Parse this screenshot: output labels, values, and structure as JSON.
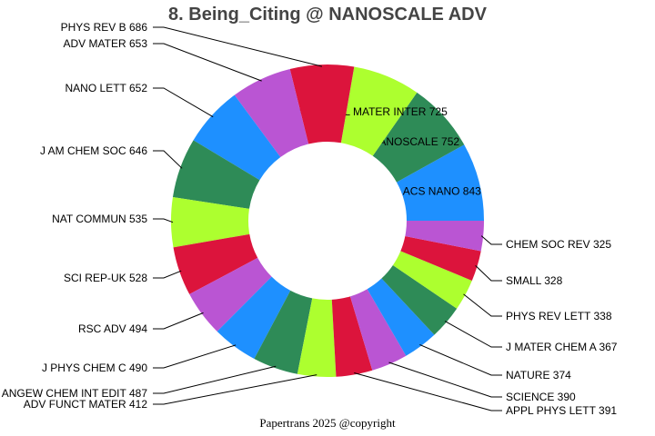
{
  "chart_data": {
    "type": "pie",
    "variant": "donut",
    "title": "8. Being_Citing @ NANOSCALE ADV",
    "direction": "counterclockwise",
    "labels": [
      "ACS NANO",
      "NANOSCALE",
      "ACS APPL MATER INTER",
      "PHYS REV B",
      "ADV MATER",
      "NANO LETT",
      "J AM CHEM SOC",
      "NAT COMMUN",
      "SCI REP-UK",
      "RSC ADV",
      "J PHYS CHEM C",
      "ANGEW CHEM INT EDIT",
      "ADV FUNCT MATER",
      "APPL PHYS LETT",
      "SCIENCE",
      "NATURE",
      "J MATER CHEM A",
      "PHYS REV LETT",
      "SMALL",
      "CHEM SOC REV"
    ],
    "values": [
      843,
      752,
      725,
      686,
      653,
      652,
      646,
      535,
      528,
      494,
      490,
      487,
      412,
      391,
      390,
      374,
      367,
      338,
      328,
      325
    ],
    "colors": [
      "#1E90FF",
      "#2E8B57",
      "#ADFF2F",
      "#DC143C",
      "#BA55D3"
    ],
    "legend": "none"
  },
  "footer": "Papertrans 2025 @copyright"
}
